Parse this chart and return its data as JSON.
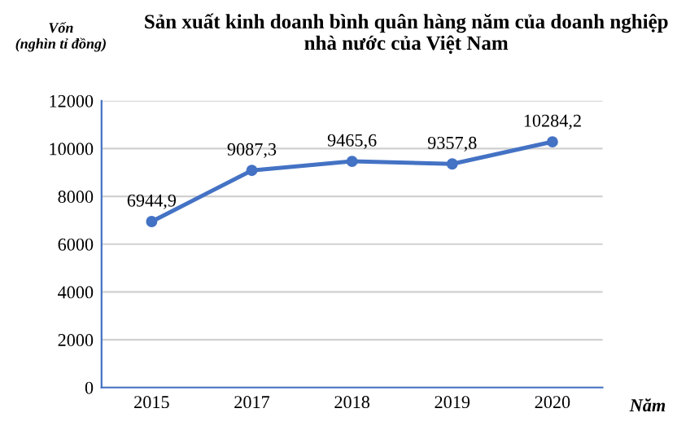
{
  "chart_data": {
    "type": "line",
    "title": "Sản xuất kinh doanh bình quân hàng năm của doanh nghiệp nhà nước của Việt Nam",
    "xlabel": "Năm",
    "ylabel": "Vốn\n(nghìn tỉ đồng)",
    "categories": [
      "2015",
      "2017",
      "2018",
      "2019",
      "2020"
    ],
    "series": [
      {
        "color": "#4472c4",
        "values": [
          6944.9,
          9087.3,
          9465.6,
          9357.8,
          10284.2
        ],
        "value_labels": [
          "6944,9",
          "9087,3",
          "9465,6",
          "9357,8",
          "10284,2"
        ]
      }
    ],
    "ylim": [
      0,
      12000
    ],
    "yticks": [
      0,
      2000,
      4000,
      6000,
      8000,
      10000,
      12000
    ],
    "grid": "y",
    "marker": "circle",
    "line_style": "solid"
  }
}
